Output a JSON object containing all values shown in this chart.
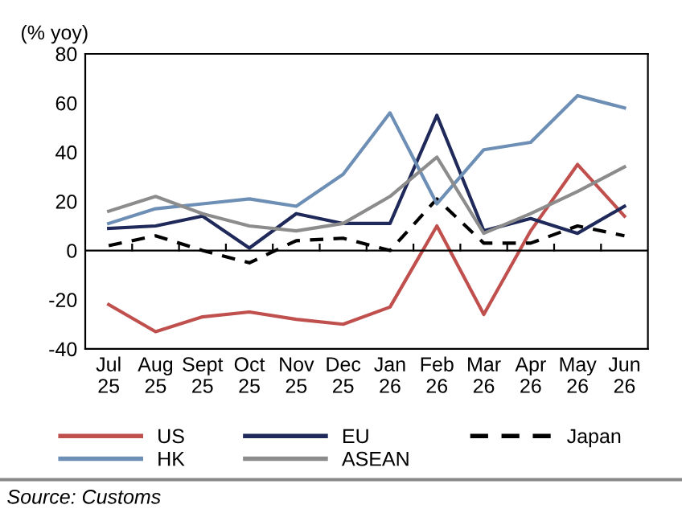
{
  "chart_data": {
    "type": "line",
    "ylabel": "(% yoy)",
    "categories": [
      "Jul\n25",
      "Aug\n25",
      "Sept\n25",
      "Oct\n25",
      "Nov\n25",
      "Dec\n25",
      "Jan\n26",
      "Feb\n26",
      "Mar\n26",
      "Apr\n26",
      "May\n26",
      "Jun\n26"
    ],
    "series": [
      {
        "name": "US",
        "color": "#c0504d",
        "values": [
          -22,
          -33,
          -27,
          -25,
          -28,
          -30,
          -23,
          10,
          -26,
          8,
          35,
          14
        ]
      },
      {
        "name": "EU",
        "color": "#1f2a5a",
        "values": [
          9,
          10,
          14,
          1,
          15,
          11,
          11,
          55,
          8,
          13,
          7,
          18
        ]
      },
      {
        "name": "Japan",
        "color": "#000000",
        "line_style": "dashed",
        "values": [
          2,
          6,
          0,
          -5,
          4,
          5,
          0,
          21,
          3,
          3,
          10,
          6
        ]
      },
      {
        "name": "HK",
        "color": "#6e8fb5",
        "values": [
          11,
          17,
          19,
          21,
          18,
          31,
          56,
          19,
          41,
          44,
          63,
          58
        ]
      },
      {
        "name": "ASEAN",
        "color": "#8c8c8c",
        "values": [
          16,
          22,
          15,
          10,
          8,
          11,
          22,
          38,
          7,
          15,
          24,
          34
        ]
      }
    ],
    "ylim": [
      -40,
      80
    ],
    "yticks": [
      -40,
      -20,
      0,
      20,
      40,
      60,
      80
    ],
    "grid": false,
    "ref_lines": [
      {
        "axis": "y",
        "value": 0,
        "color": "#000000"
      }
    ],
    "legend": "bottom",
    "annotations": [
      "Source: Customs"
    ]
  }
}
